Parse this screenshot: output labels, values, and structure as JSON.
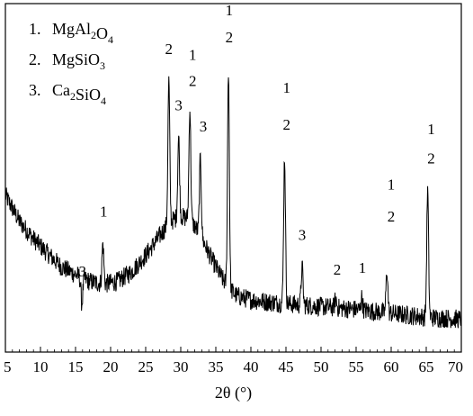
{
  "chart_data": {
    "type": "line",
    "title": "",
    "xlabel": "2θ (°)",
    "ylabel": "",
    "xlim": [
      5,
      70
    ],
    "x_ticks": [
      5,
      10,
      15,
      20,
      25,
      30,
      35,
      40,
      45,
      50,
      55,
      60,
      65,
      70
    ],
    "y_ticks_visible": false,
    "grid": false,
    "legend_position": "top-left",
    "legend": [
      {
        "number": "1.",
        "parts": [
          {
            "t": "MgAl"
          },
          {
            "t": "2",
            "sub": true
          },
          {
            "t": "O"
          },
          {
            "t": "4",
            "sub": true
          }
        ]
      },
      {
        "number": "2.",
        "parts": [
          {
            "t": "MgSiO"
          },
          {
            "t": "3",
            "sub": true
          }
        ]
      },
      {
        "number": "3.",
        "parts": [
          {
            "t": "Ca"
          },
          {
            "t": "2",
            "sub": true
          },
          {
            "t": "SiO"
          },
          {
            "t": "4",
            "sub": true
          }
        ]
      }
    ],
    "series": [
      {
        "values_note": "relative intensity (a.u.), y axis unlabeled",
        "baseline": [
          [
            5,
            232
          ],
          [
            7,
            205
          ],
          [
            9,
            187
          ],
          [
            11,
            172
          ],
          [
            13,
            158
          ],
          [
            15,
            150
          ],
          [
            17,
            143
          ],
          [
            19,
            140
          ],
          [
            21,
            143
          ],
          [
            23,
            153
          ],
          [
            25,
            170
          ],
          [
            27,
            190
          ],
          [
            28,
            200
          ],
          [
            29,
            207
          ],
          [
            30,
            210
          ],
          [
            31,
            208
          ],
          [
            32,
            200
          ],
          [
            33,
            188
          ],
          [
            34,
            172
          ],
          [
            35,
            158
          ],
          [
            36,
            145
          ],
          [
            37,
            135
          ],
          [
            38,
            128
          ],
          [
            40,
            124
          ],
          [
            42,
            122
          ],
          [
            45,
            120
          ],
          [
            50,
            117
          ],
          [
            55,
            114
          ],
          [
            60,
            110
          ],
          [
            65,
            106
          ],
          [
            70,
            104
          ]
        ],
        "peaks": [
          {
            "x": 15.9,
            "y": 120
          },
          {
            "x": 18.9,
            "y": 182
          },
          {
            "x": 28.3,
            "y": 350
          },
          {
            "x": 29.7,
            "y": 292
          },
          {
            "x": 31.3,
            "y": 322
          },
          {
            "x": 32.8,
            "y": 270
          },
          {
            "x": 36.8,
            "y": 362
          },
          {
            "x": 44.8,
            "y": 272
          },
          {
            "x": 47.3,
            "y": 158
          },
          {
            "x": 52.1,
            "y": 125
          },
          {
            "x": 55.8,
            "y": 126
          },
          {
            "x": 59.4,
            "y": 155
          },
          {
            "x": 65.2,
            "y": 237
          }
        ]
      }
    ],
    "annotations": [
      {
        "x": 16.0,
        "y": 148,
        "text": "3"
      },
      {
        "x": 19.0,
        "y": 210,
        "text": "1"
      },
      {
        "x": 28.3,
        "y": 378,
        "text": "2"
      },
      {
        "x": 29.7,
        "y": 320,
        "text": "3"
      },
      {
        "x": 31.7,
        "y": 372,
        "text": "1"
      },
      {
        "x": 31.7,
        "y": 345,
        "text": "2"
      },
      {
        "x": 33.2,
        "y": 298,
        "text": "3"
      },
      {
        "x": 36.9,
        "y": 418,
        "text": "1"
      },
      {
        "x": 36.9,
        "y": 390,
        "text": "2"
      },
      {
        "x": 45.1,
        "y": 338,
        "text": "1"
      },
      {
        "x": 45.1,
        "y": 300,
        "text": "2"
      },
      {
        "x": 47.3,
        "y": 186,
        "text": "3"
      },
      {
        "x": 52.3,
        "y": 150,
        "text": "2"
      },
      {
        "x": 55.9,
        "y": 152,
        "text": "1"
      },
      {
        "x": 60.0,
        "y": 238,
        "text": "1"
      },
      {
        "x": 60.0,
        "y": 205,
        "text": "2"
      },
      {
        "x": 65.7,
        "y": 295,
        "text": "1"
      },
      {
        "x": 65.7,
        "y": 265,
        "text": "2"
      }
    ],
    "ylim": [
      70,
      430
    ]
  }
}
